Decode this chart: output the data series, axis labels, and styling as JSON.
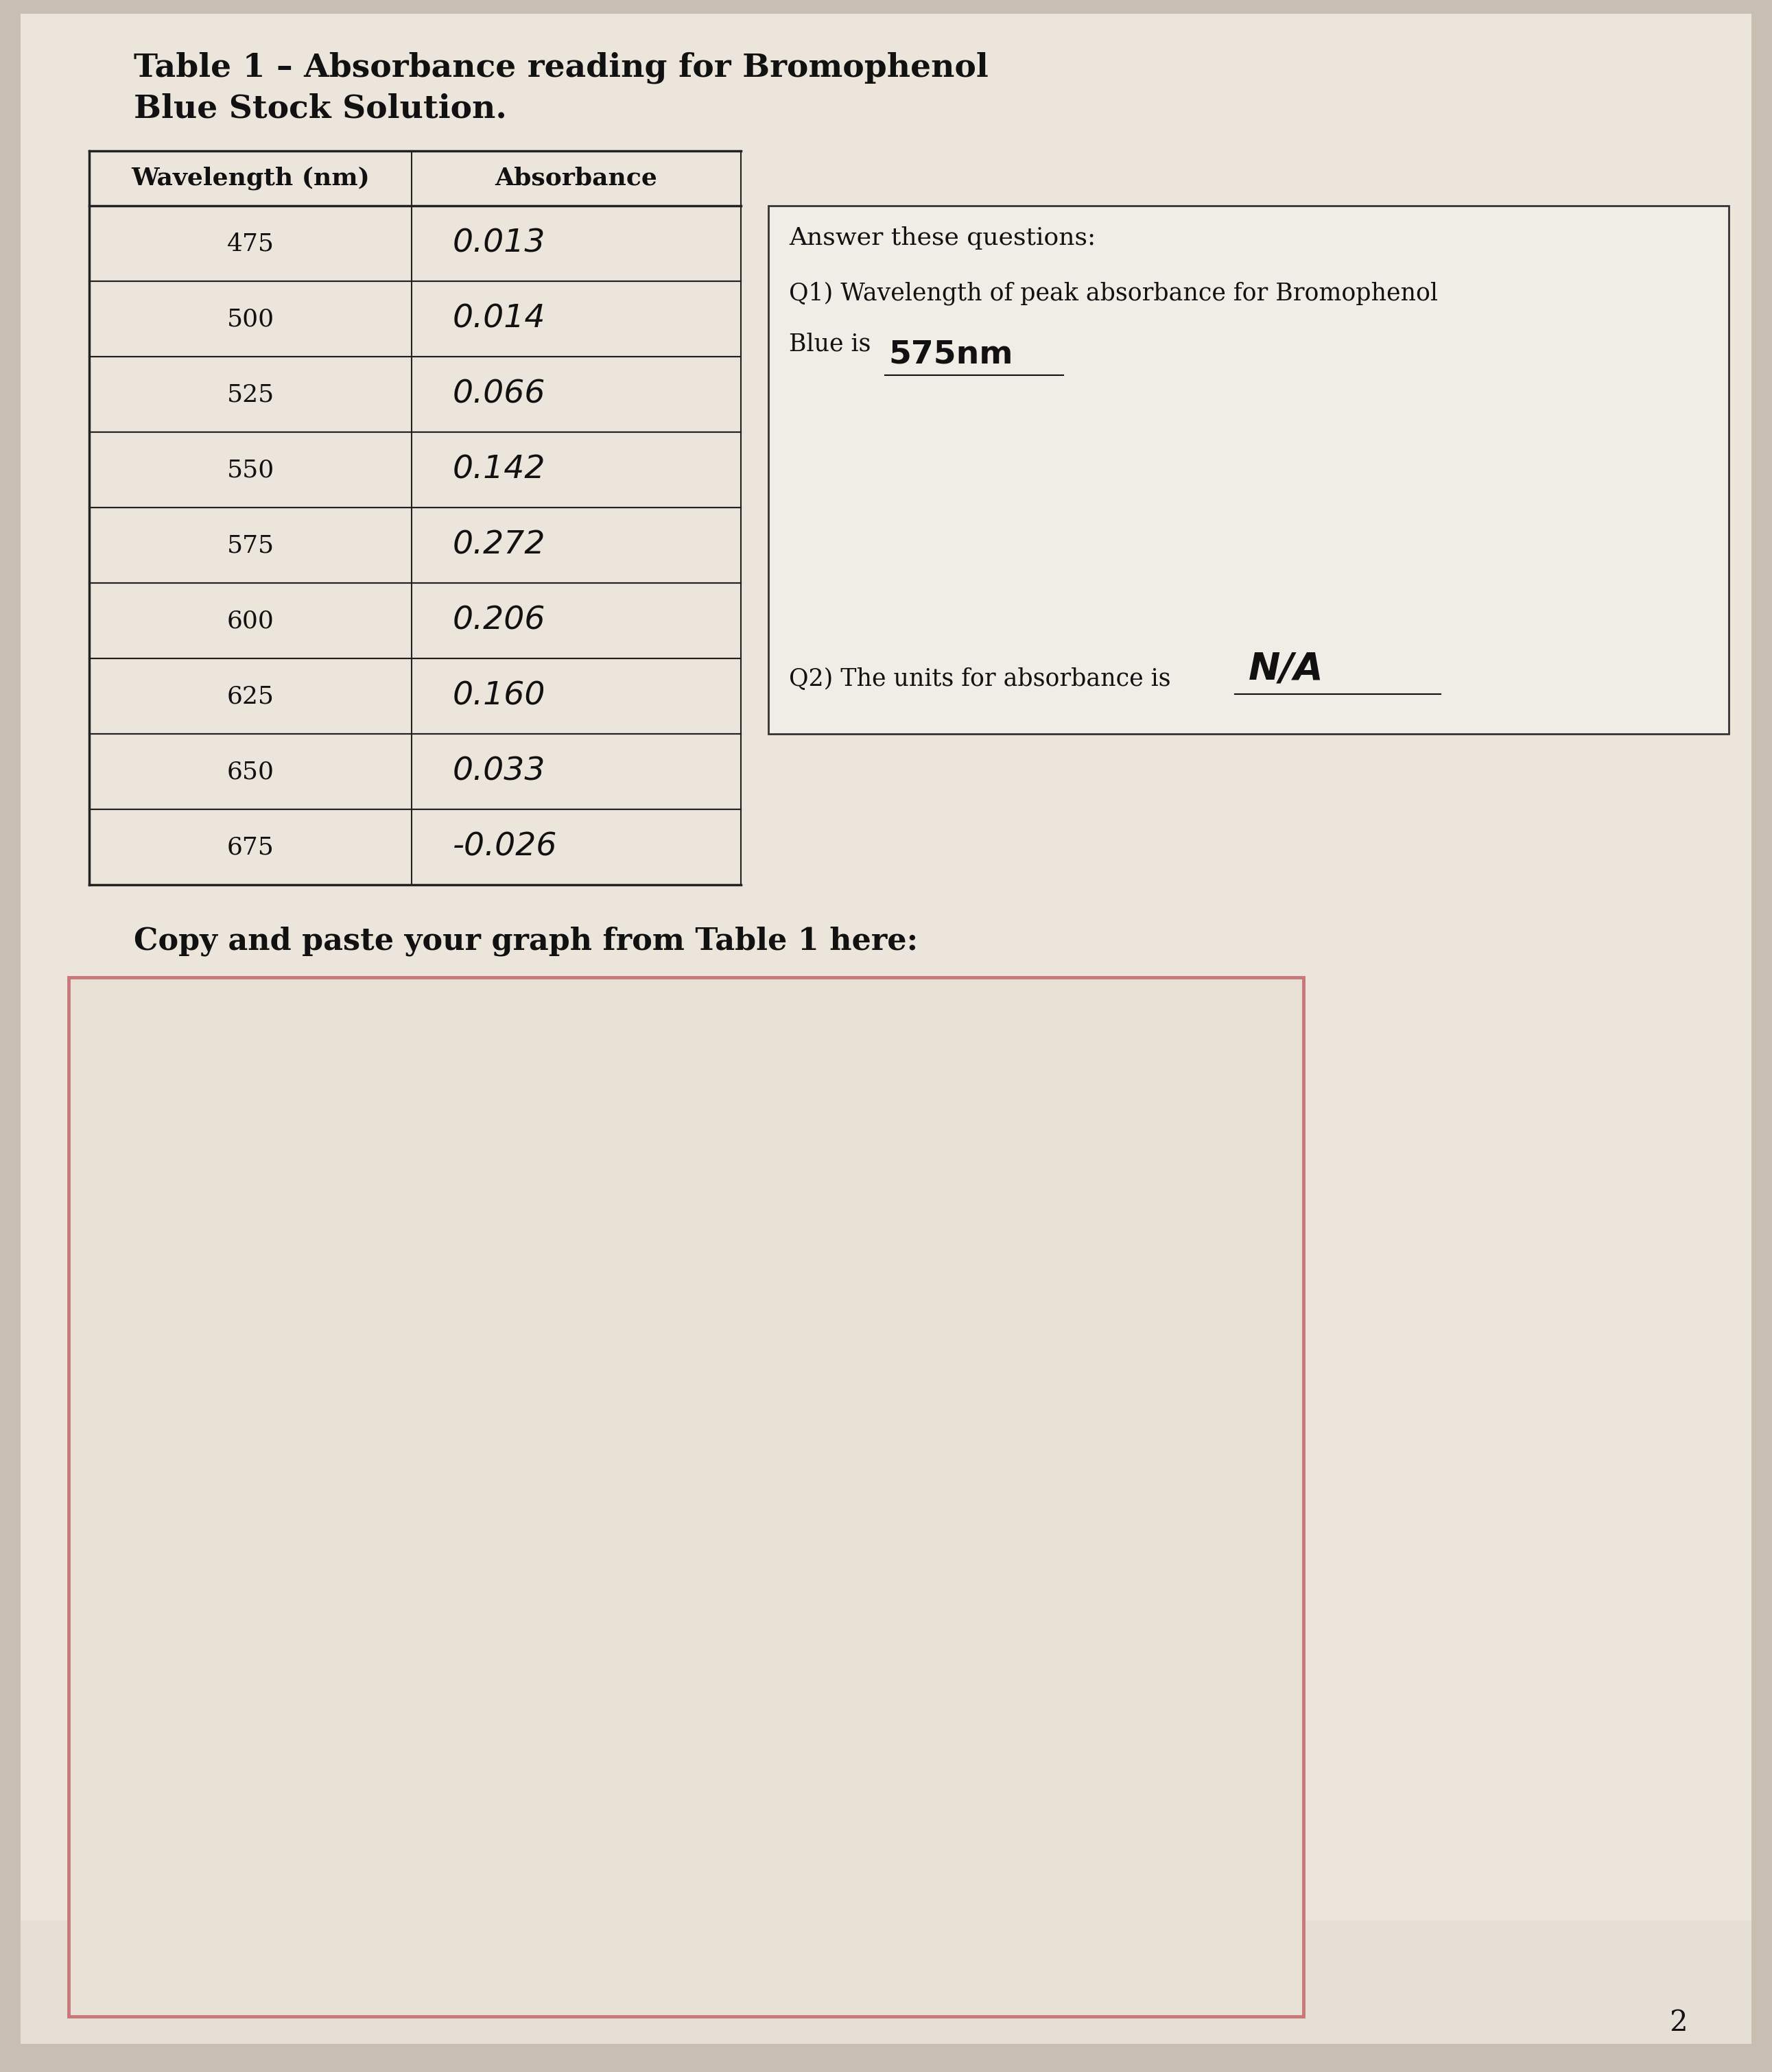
{
  "title_line1": "Table 1 – Absorbance reading for Bromophenol",
  "title_line2": "Blue Stock Solution.",
  "col1_header": "Wavelength (nm)",
  "col2_header": "Absorbance",
  "wavelengths": [
    475,
    500,
    525,
    550,
    575,
    600,
    625,
    650,
    675
  ],
  "handwritten_absorbances": [
    "0.013",
    "0.014",
    "0.066",
    "0.142",
    "0.272",
    "0.206",
    "0.160",
    "0.033",
    "-0.026"
  ],
  "copy_paste_label": "Copy and paste your graph from Table 1 here:",
  "answer_box_title": "Answer these questions:",
  "q1_line1": "Q1) Wavelength of peak absorbance for Bromophenol",
  "q1_line2_prefix": "Blue is",
  "q1_answer": "575nm",
  "q2_prefix": "Q2) The units for absorbance is ",
  "q2_answer": "N/A",
  "page_number": "2",
  "bg_color": "#c8bfb2",
  "paper_color": "#ebe5dc",
  "paper_color2": "#e2dbd0",
  "table_line_color": "#222222",
  "answer_box_border": "#333333",
  "graph_box_border": "#c87878",
  "graph_box_bg": "#e0d8cc"
}
